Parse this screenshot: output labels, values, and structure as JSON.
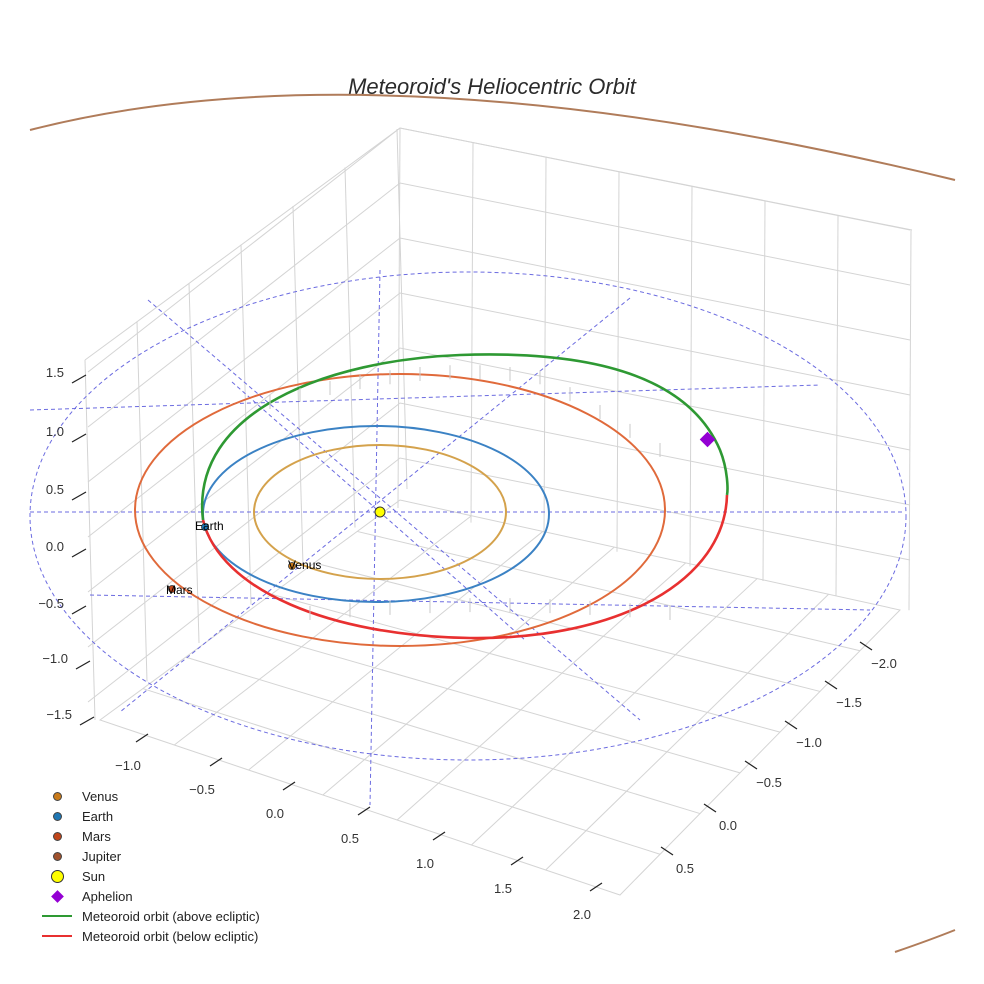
{
  "chart_data": {
    "type": "3d-line",
    "title": "Meteoroid's Heliocentric Orbit",
    "x_ticks": [
      "−1.0",
      "−0.5",
      "0.0",
      "0.5",
      "1.0",
      "1.5",
      "2.0"
    ],
    "y_ticks": [
      "−2.0",
      "−1.5",
      "−1.0",
      "−0.5",
      "0.0",
      "0.5"
    ],
    "z_ticks": [
      "1.5",
      "1.0",
      "0.5",
      "0.0",
      "−0.5",
      "−1.0",
      "−1.5"
    ],
    "planets": [
      {
        "name": "Venus",
        "a_au": 0.72,
        "color": "#d4a24c",
        "label": "Venus"
      },
      {
        "name": "Earth",
        "a_au": 1.0,
        "color": "#3b82c4",
        "label": "Earth"
      },
      {
        "name": "Mars",
        "a_au": 1.52,
        "color": "#e06a3b",
        "label": "Mars"
      },
      {
        "name": "Jupiter",
        "a_au": 5.2,
        "color": "#b07c5a"
      }
    ],
    "meteoroid_orbit": {
      "above_ecliptic": {
        "name": "Meteoroid orbit (above ecliptic)",
        "color": "#2e9933"
      },
      "below_ecliptic": {
        "name": "Meteoroid orbit (below ecliptic)",
        "color": "#e83030"
      }
    },
    "aphelion_color": "#9400d3",
    "sun_color": "#ffff00"
  },
  "legend": [
    {
      "label": "Venus",
      "kind": "dot",
      "color": "#c97a1a"
    },
    {
      "label": "Earth",
      "kind": "dot",
      "color": "#1f77b4"
    },
    {
      "label": "Mars",
      "kind": "dot",
      "color": "#c0451a"
    },
    {
      "label": "Jupiter",
      "kind": "dot",
      "color": "#a0522d"
    },
    {
      "label": "Sun",
      "kind": "sun",
      "color": "#ffff00"
    },
    {
      "label": "Aphelion",
      "kind": "diamond",
      "color": "#9400d3"
    },
    {
      "label": "Meteoroid orbit (above ecliptic)",
      "kind": "line",
      "color": "#2e9933"
    },
    {
      "label": "Meteoroid orbit (below ecliptic)",
      "kind": "line",
      "color": "#e83030"
    }
  ]
}
